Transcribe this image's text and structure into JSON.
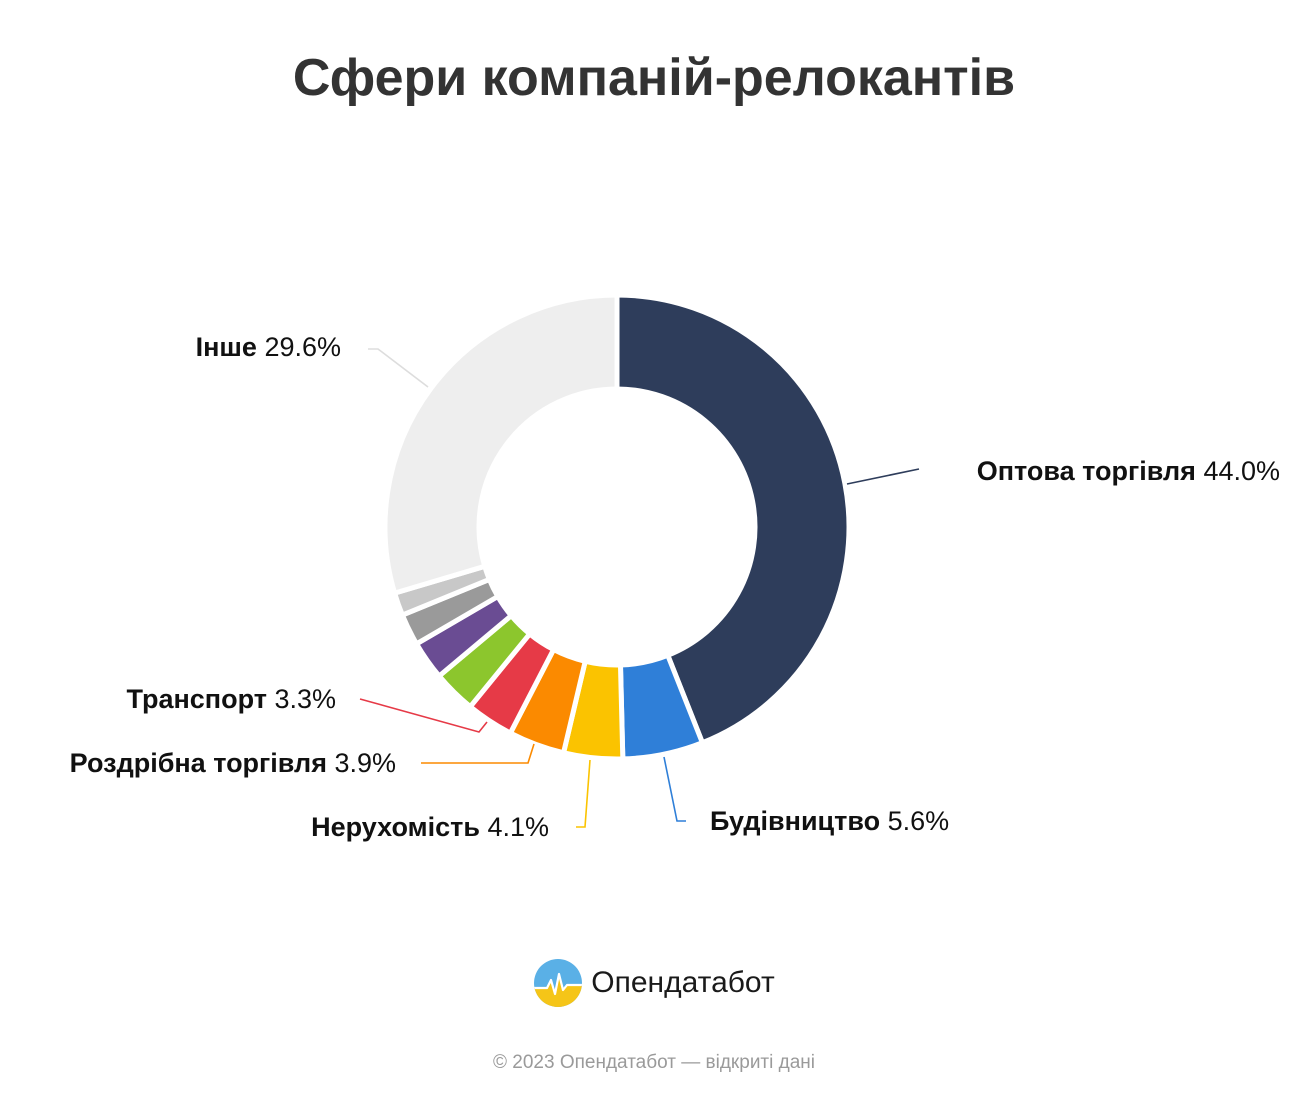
{
  "title": "Сфери компаній-релокантів",
  "chart_data": {
    "type": "pie",
    "variant": "donut",
    "title": "Сфери компаній-релокантів",
    "slices": [
      {
        "name": "Оптова торгівля",
        "value": 44.0,
        "label": "44.0%",
        "color": "#2e3d5b",
        "labeled": true
      },
      {
        "name": "Будівництво",
        "value": 5.6,
        "label": "5.6%",
        "color": "#2f7fd8",
        "labeled": true
      },
      {
        "name": "Нерухомість",
        "value": 4.1,
        "label": "4.1%",
        "color": "#fbc300",
        "labeled": true
      },
      {
        "name": "Роздрібна торгівля",
        "value": 3.9,
        "label": "3.9%",
        "color": "#fb8a00",
        "labeled": true
      },
      {
        "name": "Транспорт",
        "value": 3.3,
        "label": "3.3%",
        "color": "#e63a47",
        "labeled": true
      },
      {
        "name": "",
        "value": 3.0,
        "label": "",
        "color": "#8cc62d",
        "labeled": false
      },
      {
        "name": "",
        "value": 2.7,
        "label": "",
        "color": "#6a4c93",
        "labeled": false
      },
      {
        "name": "",
        "value": 2.2,
        "label": "",
        "color": "#9a9a9a",
        "labeled": false
      },
      {
        "name": "",
        "value": 1.6,
        "label": "",
        "color": "#c8c8c8",
        "labeled": false
      },
      {
        "name": "Інше",
        "value": 29.6,
        "label": "29.6%",
        "color": "#eeeeee",
        "labeled": true
      }
    ]
  },
  "brand": {
    "name": "Опендатабот",
    "logo_colors": {
      "sky": "#5ab0e6",
      "field": "#f5c518"
    }
  },
  "footer": {
    "copyright": "© 2023 Опендатабот — відкриті дані"
  }
}
